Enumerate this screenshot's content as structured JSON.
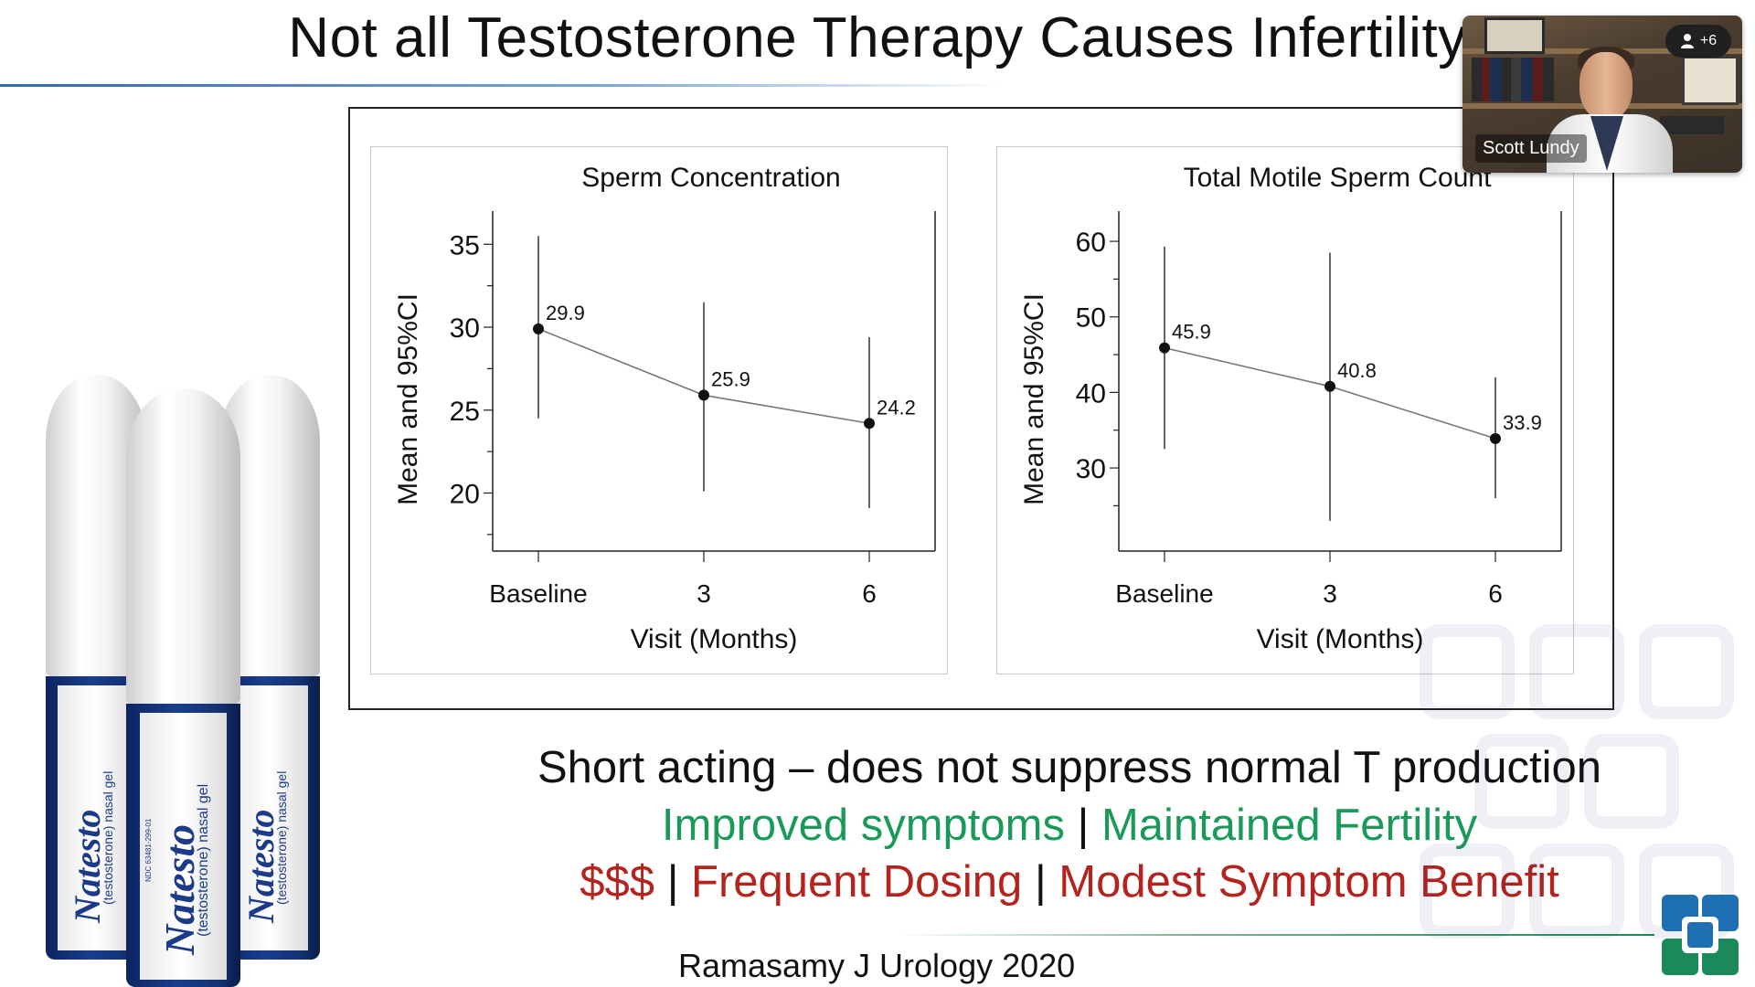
{
  "slide": {
    "title": "Not all Testosterone Therapy Causes Infertility"
  },
  "chart_data": [
    {
      "type": "line",
      "title": "Sperm Concentration",
      "xlabel": "Visit (Months)",
      "ylabel": "Mean and 95%CI",
      "categories": [
        "Baseline",
        "3",
        "6"
      ],
      "values": [
        29.9,
        25.9,
        24.2
      ],
      "ci_lower": [
        24.5,
        20.1,
        19.1
      ],
      "ci_upper": [
        35.5,
        31.5,
        29.4
      ],
      "y_ticks": [
        20,
        25,
        30,
        35
      ],
      "ylim": [
        16.5,
        37.0
      ],
      "grid": false
    },
    {
      "type": "line",
      "title": "Total Motile Sperm Count",
      "xlabel": "Visit (Months)",
      "ylabel": "Mean and 95%CI",
      "categories": [
        "Baseline",
        "3",
        "6"
      ],
      "values": [
        45.9,
        40.8,
        33.9
      ],
      "ci_lower": [
        32.5,
        23.0,
        26.0
      ],
      "ci_upper": [
        59.3,
        58.5,
        42.0
      ],
      "y_ticks": [
        30,
        40,
        50,
        60
      ],
      "ylim": [
        19.0,
        64.0
      ],
      "grid": false
    }
  ],
  "captions": {
    "line1": "Short acting – does not suppress normal T production",
    "pros": [
      "Improved symptoms",
      "Maintained Fertility"
    ],
    "cons": [
      "$$$",
      "Frequent Dosing",
      "Modest Symptom Benefit"
    ],
    "separator": "|"
  },
  "citation": "Ramasamy J Urology 2020",
  "products": {
    "brand": "Natesto",
    "trademark": "™",
    "subtitle": "(testosterone) nasal gel",
    "ndc": "NDC 63481-299-01"
  },
  "video_call": {
    "participant_name": "Scott Lundy",
    "others_count": "+6",
    "person_icon": "person-icon"
  },
  "colors": {
    "pro_green": "#1a9a58",
    "con_red": "#b4231d",
    "brand_blue": "#1b3a88",
    "logo_blue": "#1f6fb5",
    "logo_green": "#1b8a5a"
  }
}
